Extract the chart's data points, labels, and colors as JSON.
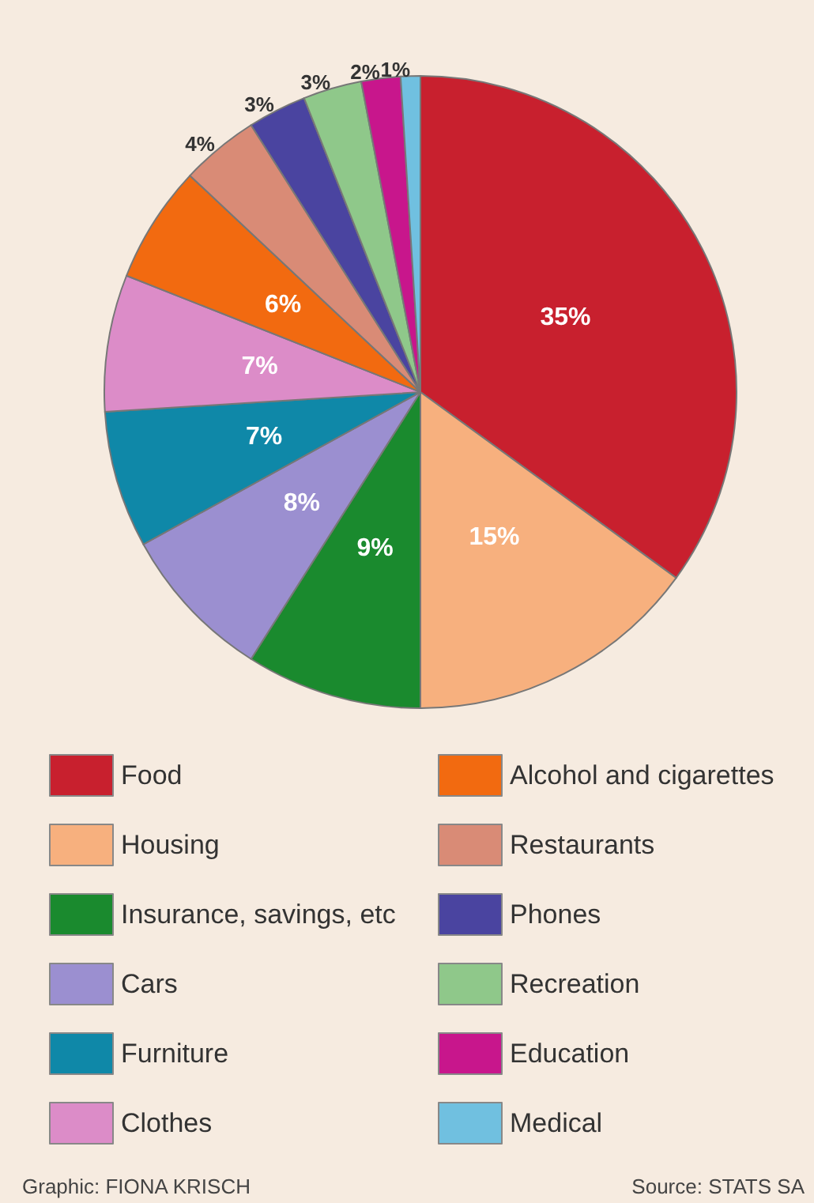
{
  "chart_data": {
    "type": "pie",
    "categories": [
      "Food",
      "Housing",
      "Insurance, savings, etc",
      "Cars",
      "Furniture",
      "Clothes",
      "Alcohol and cigarettes",
      "Restaurants",
      "Phones",
      "Recreation",
      "Education",
      "Medical"
    ],
    "values": [
      35,
      15,
      9,
      8,
      7,
      7,
      6,
      4,
      3,
      3,
      2,
      1
    ],
    "value_labels": [
      "35%",
      "15%",
      "9%",
      "8%",
      "7%",
      "7%",
      "6%",
      "4%",
      "3%",
      "3%",
      "2%",
      "1%"
    ],
    "colors": [
      "#c8202e",
      "#f7b07e",
      "#1a8a2e",
      "#9b8fd0",
      "#0f88a8",
      "#dc8cc8",
      "#f26a10",
      "#d98b76",
      "#4a44a0",
      "#8fc88a",
      "#c8168c",
      "#70c0e0"
    ],
    "legend": "bottom",
    "annotations": [
      "Graphic: FIONA KRISCH",
      "Source: STATS SA"
    ]
  }
}
